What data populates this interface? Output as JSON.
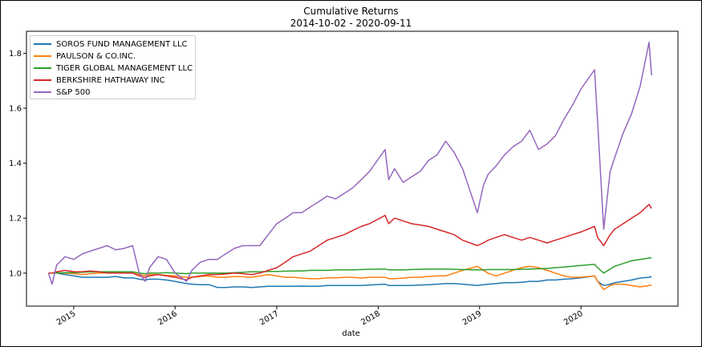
{
  "chart_data": {
    "type": "line",
    "title": "Cumulative Returns",
    "subtitle": "2014-10-02 - 2020-09-11",
    "xlabel": "date",
    "ylabel": "",
    "xlim": [
      "2014-07-15",
      "2020-12-15"
    ],
    "ylim": [
      0.88,
      1.88
    ],
    "x_ticks": [
      "2015",
      "2016",
      "2017",
      "2018",
      "2019",
      "2020"
    ],
    "y_ticks": [
      "1.0",
      "1.2",
      "1.4",
      "1.6",
      "1.8"
    ],
    "grid": false,
    "legend_placement": "top-left",
    "x": [
      "2014-10-02",
      "2014-10-15",
      "2014-11-01",
      "2014-12-01",
      "2015-01-01",
      "2015-02-01",
      "2015-03-01",
      "2015-04-01",
      "2015-05-01",
      "2015-06-01",
      "2015-07-01",
      "2015-08-01",
      "2015-08-25",
      "2015-09-15",
      "2015-10-01",
      "2015-11-01",
      "2015-12-01",
      "2016-01-01",
      "2016-02-11",
      "2016-03-01",
      "2016-04-01",
      "2016-05-01",
      "2016-06-01",
      "2016-07-01",
      "2016-08-01",
      "2016-09-01",
      "2016-10-01",
      "2016-11-01",
      "2016-12-01",
      "2017-01-01",
      "2017-02-01",
      "2017-03-01",
      "2017-04-01",
      "2017-05-01",
      "2017-06-01",
      "2017-07-01",
      "2017-08-01",
      "2017-09-01",
      "2017-10-01",
      "2017-11-01",
      "2017-12-01",
      "2018-01-26",
      "2018-02-08",
      "2018-03-01",
      "2018-04-01",
      "2018-05-01",
      "2018-06-01",
      "2018-07-01",
      "2018-08-01",
      "2018-09-01",
      "2018-10-01",
      "2018-11-01",
      "2018-12-24",
      "2019-01-15",
      "2019-02-01",
      "2019-03-01",
      "2019-04-01",
      "2019-05-01",
      "2019-06-01",
      "2019-07-01",
      "2019-08-01",
      "2019-09-01",
      "2019-10-01",
      "2019-11-01",
      "2019-12-01",
      "2020-01-01",
      "2020-02-19",
      "2020-03-01",
      "2020-03-23",
      "2020-04-15",
      "2020-05-01",
      "2020-06-01",
      "2020-07-01",
      "2020-08-01",
      "2020-09-02",
      "2020-09-11"
    ],
    "series": [
      {
        "name": "SOROS FUND MANAGEMENT LLC",
        "color": "#1f77b4",
        "values": [
          1.0,
          1.0,
          1.0,
          0.995,
          0.99,
          0.985,
          0.985,
          0.985,
          0.985,
          0.988,
          0.983,
          0.983,
          0.978,
          0.975,
          0.978,
          0.978,
          0.975,
          0.97,
          0.962,
          0.96,
          0.958,
          0.958,
          0.948,
          0.948,
          0.95,
          0.95,
          0.948,
          0.95,
          0.952,
          0.952,
          0.952,
          0.952,
          0.953,
          0.952,
          0.952,
          0.955,
          0.955,
          0.955,
          0.955,
          0.955,
          0.957,
          0.96,
          0.955,
          0.955,
          0.955,
          0.955,
          0.957,
          0.958,
          0.96,
          0.962,
          0.962,
          0.96,
          0.955,
          0.958,
          0.96,
          0.962,
          0.965,
          0.965,
          0.967,
          0.97,
          0.97,
          0.975,
          0.975,
          0.978,
          0.98,
          0.983,
          0.99,
          0.97,
          0.955,
          0.96,
          0.965,
          0.97,
          0.975,
          0.982,
          0.985,
          0.988
        ]
      },
      {
        "name": "PAULSON & CO.INC.",
        "color": "#ff7f0e",
        "values": [
          1.0,
          1.0,
          1.002,
          1.0,
          0.998,
          0.995,
          0.998,
          1.0,
          1.002,
          1.005,
          1.0,
          1.0,
          0.995,
          0.992,
          0.995,
          0.995,
          0.992,
          0.99,
          0.985,
          0.985,
          0.988,
          0.99,
          0.985,
          0.985,
          0.988,
          0.987,
          0.985,
          0.99,
          0.995,
          0.99,
          0.985,
          0.985,
          0.982,
          0.98,
          0.98,
          0.983,
          0.983,
          0.985,
          0.985,
          0.982,
          0.985,
          0.985,
          0.98,
          0.98,
          0.982,
          0.985,
          0.985,
          0.988,
          0.99,
          0.99,
          1.0,
          1.01,
          1.025,
          1.01,
          1.0,
          0.99,
          1.0,
          1.01,
          1.02,
          1.025,
          1.02,
          1.01,
          1.0,
          0.99,
          0.985,
          0.985,
          0.99,
          0.97,
          0.94,
          0.955,
          0.96,
          0.96,
          0.955,
          0.95,
          0.955,
          0.957
        ]
      },
      {
        "name": "TIGER GLOBAL MANAGEMENT LLC",
        "color": "#2ca02c",
        "values": [
          1.0,
          1.0,
          1.0,
          1.002,
          1.002,
          1.003,
          1.005,
          1.005,
          1.005,
          1.005,
          1.005,
          1.005,
          1.0,
          0.998,
          1.0,
          1.0,
          1.002,
          1.0,
          0.998,
          1.0,
          1.0,
          1.0,
          1.0,
          1.0,
          1.002,
          1.003,
          1.005,
          1.005,
          1.006,
          1.006,
          1.007,
          1.008,
          1.008,
          1.01,
          1.01,
          1.01,
          1.012,
          1.012,
          1.012,
          1.013,
          1.014,
          1.015,
          1.012,
          1.012,
          1.012,
          1.013,
          1.014,
          1.015,
          1.015,
          1.015,
          1.014,
          1.013,
          1.012,
          1.012,
          1.013,
          1.013,
          1.013,
          1.013,
          1.014,
          1.015,
          1.016,
          1.017,
          1.02,
          1.022,
          1.025,
          1.028,
          1.032,
          1.02,
          1.0,
          1.015,
          1.025,
          1.035,
          1.045,
          1.05,
          1.055,
          1.056
        ]
      },
      {
        "name": "BERKSHIRE HATHAWAY INC",
        "color": "#d62728",
        "values": [
          1.0,
          1.0,
          1.005,
          1.01,
          1.005,
          1.005,
          1.008,
          1.005,
          1.0,
          1.0,
          1.0,
          1.0,
          0.99,
          0.985,
          0.99,
          0.995,
          0.99,
          0.985,
          0.975,
          0.985,
          0.99,
          0.995,
          0.995,
          0.997,
          1.0,
          0.998,
          0.995,
          1.0,
          1.01,
          1.02,
          1.04,
          1.06,
          1.07,
          1.08,
          1.1,
          1.12,
          1.13,
          1.14,
          1.155,
          1.17,
          1.18,
          1.21,
          1.18,
          1.2,
          1.19,
          1.18,
          1.175,
          1.17,
          1.16,
          1.15,
          1.14,
          1.12,
          1.1,
          1.11,
          1.12,
          1.13,
          1.14,
          1.13,
          1.12,
          1.13,
          1.12,
          1.11,
          1.12,
          1.13,
          1.14,
          1.15,
          1.17,
          1.13,
          1.1,
          1.14,
          1.16,
          1.18,
          1.2,
          1.22,
          1.25,
          1.235
        ]
      },
      {
        "name": "S&P 500",
        "color": "#9467bd",
        "values": [
          1.0,
          0.96,
          1.03,
          1.06,
          1.05,
          1.07,
          1.08,
          1.09,
          1.1,
          1.085,
          1.09,
          1.1,
          1.0,
          0.97,
          1.02,
          1.06,
          1.05,
          1.0,
          0.97,
          1.01,
          1.04,
          1.05,
          1.05,
          1.07,
          1.09,
          1.1,
          1.1,
          1.1,
          1.14,
          1.18,
          1.2,
          1.22,
          1.22,
          1.24,
          1.26,
          1.28,
          1.27,
          1.29,
          1.31,
          1.34,
          1.37,
          1.45,
          1.34,
          1.38,
          1.33,
          1.35,
          1.37,
          1.41,
          1.43,
          1.48,
          1.44,
          1.38,
          1.22,
          1.32,
          1.36,
          1.39,
          1.43,
          1.46,
          1.48,
          1.52,
          1.45,
          1.47,
          1.5,
          1.56,
          1.61,
          1.67,
          1.74,
          1.55,
          1.16,
          1.37,
          1.42,
          1.51,
          1.58,
          1.68,
          1.84,
          1.72
        ]
      }
    ]
  }
}
